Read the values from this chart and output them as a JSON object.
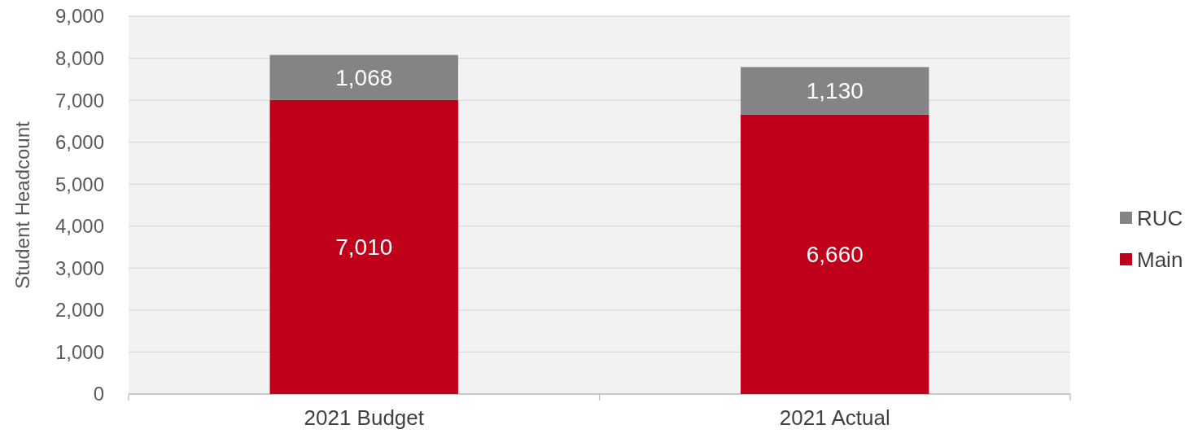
{
  "chart_data": {
    "type": "bar",
    "stacked": true,
    "ylabel": "Student Headcount",
    "categories": [
      "2021 Budget",
      "2021 Actual"
    ],
    "series": [
      {
        "name": "Main",
        "color": "#c0001a",
        "values": [
          7010,
          6660
        ],
        "value_labels": [
          "7,010",
          "6,660"
        ]
      },
      {
        "name": "RUC",
        "color": "#848486",
        "values": [
          1068,
          1130
        ],
        "value_labels": [
          "1,068",
          "1,130"
        ]
      }
    ],
    "ylim": [
      0,
      9000
    ],
    "yticks": [
      {
        "value": 0,
        "label": "0"
      },
      {
        "value": 1000,
        "label": "1,000"
      },
      {
        "value": 2000,
        "label": "2,000"
      },
      {
        "value": 3000,
        "label": "3,000"
      },
      {
        "value": 4000,
        "label": "4,000"
      },
      {
        "value": 5000,
        "label": "5,000"
      },
      {
        "value": 6000,
        "label": "6,000"
      },
      {
        "value": 7000,
        "label": "7,000"
      },
      {
        "value": 8000,
        "label": "8,000"
      },
      {
        "value": 9000,
        "label": "9,000"
      }
    ],
    "grid": "y",
    "legend": "right"
  }
}
